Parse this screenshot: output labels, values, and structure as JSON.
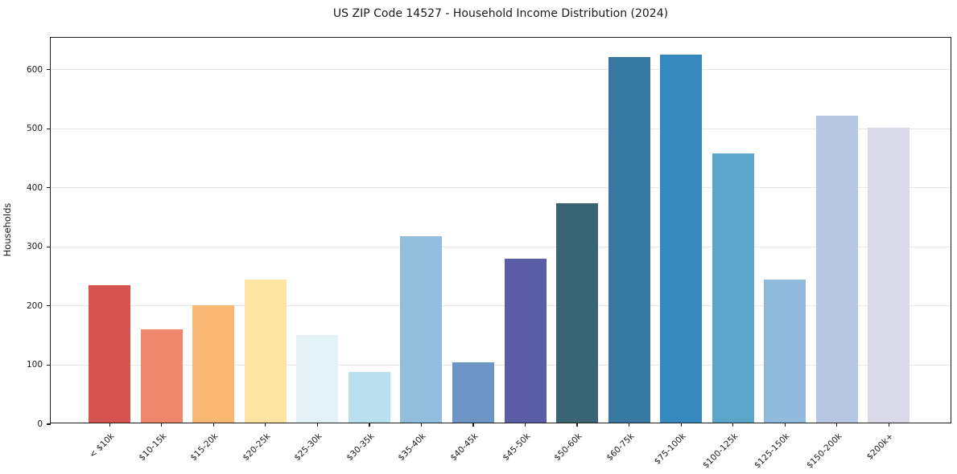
{
  "title": "US ZIP Code 14527 - Household Income Distribution (2024)",
  "chart_data": {
    "type": "bar",
    "title": "US ZIP Code 14527 - Household Income Distribution (2024)",
    "xlabel": "",
    "ylabel": "Households",
    "ylim": [
      0,
      654
    ],
    "yticks": [
      0,
      100,
      200,
      300,
      400,
      500,
      600
    ],
    "grid": "horizontal",
    "legend": "none",
    "categories": [
      "< $10k",
      "$10-15k",
      "$15-20k",
      "$20-25k",
      "$25-30k",
      "$30-35k",
      "$35-40k",
      "$40-45k",
      "$45-50k",
      "$50-60k",
      "$60-75k",
      "$75-100k",
      "$100-125k",
      "$125-150k",
      "$150-200k",
      "$200k+"
    ],
    "values": [
      232,
      158,
      198,
      242,
      148,
      86,
      315,
      102,
      277,
      371,
      619,
      623,
      456,
      242,
      520,
      499
    ],
    "bar_colors": [
      "#d6544f",
      "#f0876b",
      "#f9b871",
      "#fde4a1",
      "#e4f1f6",
      "#badfee",
      "#91bedc",
      "#6c94c5",
      "#5b5ea7",
      "#3a6473",
      "#3779a2",
      "#3589bf",
      "#5ca6cc",
      "#90b9dc",
      "#b8c8e2",
      "#d9d9e8"
    ]
  }
}
